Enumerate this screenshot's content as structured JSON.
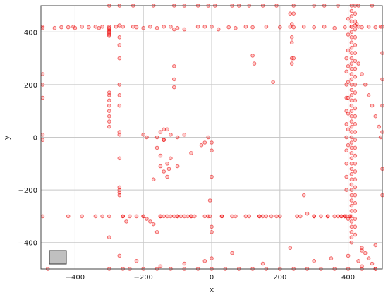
{
  "chart_data": {
    "type": "scatter",
    "title": "",
    "xlabel": "x",
    "ylabel": "y",
    "xlim": [
      -500,
      500
    ],
    "ylim": [
      -500,
      500
    ],
    "xticks": [
      -400,
      -200,
      0,
      200,
      400
    ],
    "yticks": [
      -400,
      -200,
      0,
      200,
      400
    ],
    "xtick_labels": [
      "−400",
      "−200",
      "0",
      "200",
      "400"
    ],
    "ytick_labels": [
      "−400",
      "−200",
      "0",
      "200",
      "400"
    ],
    "grid": true,
    "marker_color": "#ff0000",
    "inset_box_color": "#c0c0c0",
    "series": [
      {
        "x": [
          -495,
          -495,
          -460,
          -440,
          -420,
          -405,
          -400,
          -380,
          -360,
          -340,
          -330,
          -320,
          -300,
          -300,
          -300,
          -300,
          -300,
          -300,
          -300,
          -300,
          -280,
          -270,
          -260,
          -230,
          -220,
          -200,
          -180,
          -160,
          -140,
          -120,
          -110,
          -100,
          -80,
          -40,
          -20,
          0,
          20,
          50,
          70,
          100,
          120,
          160,
          200,
          230,
          240,
          270,
          300,
          330,
          360,
          390,
          410,
          420,
          425,
          430,
          440,
          460,
          480,
          495,
          -495,
          -495,
          -495,
          -495,
          -495,
          -495,
          -300,
          -300,
          -300,
          -300,
          -300,
          -300,
          -300,
          -300,
          -270,
          -270,
          -270,
          -270,
          -270,
          -270,
          -270,
          -270,
          -270,
          -270,
          -270,
          -270,
          -270,
          -260,
          -250,
          -200,
          -190,
          -180,
          -170,
          -160,
          -150,
          -140,
          -130,
          -120,
          -110,
          -100,
          -90,
          -80,
          -70,
          -60,
          -50,
          -10,
          -5,
          30,
          30,
          70,
          110,
          140,
          150,
          160,
          175,
          190,
          -110,
          -110,
          -110,
          -160,
          -150,
          -130,
          -120,
          -200,
          -190,
          -100,
          -140,
          -140,
          -80,
          0,
          0,
          0,
          0,
          -170,
          -150,
          -140,
          -130,
          -125,
          -150,
          -130,
          -160,
          -120,
          -140,
          -100,
          -60,
          -30,
          -20,
          -10,
          0,
          -5,
          120,
          125,
          180,
          230,
          235,
          235,
          235,
          235,
          235,
          240,
          240,
          250,
          270,
          280,
          300,
          320,
          340,
          360,
          380,
          390,
          395,
          400,
          405,
          410,
          410,
          410,
          410,
          410,
          410,
          410,
          410,
          410,
          410,
          410,
          410,
          410,
          410,
          410,
          410,
          410,
          410,
          410,
          410,
          410,
          410,
          410,
          410,
          410,
          410,
          410,
          410,
          410,
          410,
          410,
          410,
          410,
          410,
          410,
          410,
          410,
          410,
          410,
          410,
          410,
          410,
          410,
          410,
          410,
          410,
          420,
          420,
          420,
          420,
          420,
          420,
          420,
          420,
          420,
          420,
          420,
          420,
          420,
          420,
          420,
          420,
          420,
          420,
          420,
          420,
          420,
          420,
          420,
          420,
          420,
          420,
          420,
          420,
          420,
          420,
          395,
          395,
          395,
          395,
          395,
          395,
          395,
          395,
          395,
          395,
          395,
          400,
          400,
          400,
          400,
          400,
          400,
          400,
          400,
          400,
          430,
          440,
          450,
          460,
          470,
          480,
          490,
          495,
          500,
          500,
          500,
          500,
          500,
          500,
          500,
          440,
          450,
          460,
          470,
          480,
          430,
          440,
          -420,
          -380,
          -340,
          -320,
          -300,
          -260,
          -240,
          -220,
          -200,
          -150,
          -100,
          -60,
          -20,
          60,
          100,
          140,
          200,
          260,
          300,
          340,
          370,
          380,
          390,
          405,
          -300,
          -260,
          -240,
          -200,
          -160,
          -120,
          -80,
          -40,
          0,
          40,
          80,
          120,
          160,
          200,
          240,
          280,
          320,
          360,
          400,
          440,
          480,
          -300,
          -270,
          -230,
          -170,
          -110,
          -80,
          -40,
          -10,
          10,
          60,
          80,
          110,
          150,
          190,
          240,
          300,
          330,
          370,
          430,
          470,
          -480,
          -300,
          -270,
          -220,
          -150,
          -80,
          -20,
          0,
          60,
          150,
          230,
          300,
          350,
          400,
          440,
          480
        ],
        "y": [
          420,
          415,
          415,
          418,
          418,
          420,
          415,
          420,
          418,
          420,
          415,
          420,
          420,
          415,
          410,
          405,
          400,
          395,
          390,
          385,
          420,
          425,
          420,
          420,
          418,
          415,
          420,
          415,
          420,
          420,
          410,
          415,
          410,
          420,
          420,
          420,
          410,
          418,
          415,
          420,
          418,
          420,
          418,
          420,
          418,
          420,
          418,
          420,
          415,
          418,
          420,
          425,
          430,
          420,
          418,
          420,
          418,
          420,
          240,
          200,
          150,
          10,
          -10,
          -300,
          160,
          170,
          140,
          120,
          100,
          80,
          60,
          40,
          380,
          350,
          300,
          200,
          160,
          120,
          20,
          10,
          -80,
          -190,
          -200,
          -210,
          -220,
          -300,
          -320,
          -300,
          -310,
          -320,
          -330,
          -360,
          -300,
          -300,
          -300,
          -300,
          -300,
          -300,
          -300,
          -300,
          -300,
          -300,
          -300,
          -300,
          -300,
          -300,
          -300,
          -300,
          -300,
          -300,
          -300,
          -300,
          -300,
          -300,
          270,
          220,
          190,
          0,
          20,
          30,
          10,
          10,
          0,
          0,
          30,
          -10,
          10,
          -50,
          -150,
          -340,
          -360,
          -160,
          -110,
          -130,
          -150,
          -120,
          -70,
          -100,
          -40,
          -80,
          -10,
          -110,
          -60,
          -30,
          -20,
          0,
          -20,
          -240,
          310,
          280,
          210,
          470,
          430,
          380,
          360,
          300,
          280,
          470,
          300,
          -300,
          -220,
          -290,
          -300,
          -300,
          -300,
          -300,
          -300,
          -300,
          -300,
          -310,
          -300,
          500,
          480,
          460,
          440,
          420,
          400,
          380,
          360,
          340,
          320,
          300,
          280,
          260,
          240,
          220,
          200,
          180,
          160,
          140,
          120,
          100,
          80,
          60,
          40,
          20,
          0,
          -20,
          -40,
          -60,
          -80,
          -100,
          -120,
          -140,
          -160,
          -180,
          -200,
          -220,
          -240,
          -260,
          -280,
          -300,
          -320,
          -340,
          -360,
          -380,
          -400,
          500,
          470,
          440,
          410,
          380,
          350,
          320,
          290,
          260,
          230,
          200,
          170,
          140,
          110,
          80,
          50,
          20,
          -10,
          -40,
          -70,
          -100,
          -130,
          -160,
          -190,
          -220,
          -250,
          -280,
          -310,
          -340,
          -370,
          300,
          250,
          200,
          150,
          100,
          50,
          0,
          -50,
          -100,
          -150,
          -200,
          450,
          390,
          330,
          270,
          210,
          150,
          90,
          30,
          -30,
          280,
          240,
          200,
          160,
          120,
          80,
          40,
          0,
          420,
          320,
          220,
          120,
          20,
          -120,
          -220,
          -420,
          -440,
          -460,
          -480,
          -500,
          -470,
          -490,
          -300,
          -300,
          -300,
          -300,
          -300,
          -300,
          -300,
          -300,
          -300,
          -300,
          -300,
          -300,
          -300,
          -300,
          -300,
          -300,
          -300,
          -300,
          -300,
          -300,
          -300,
          -300,
          -300,
          -300,
          -500,
          -500,
          -500,
          -500,
          -500,
          -500,
          -500,
          -500,
          -500,
          -500,
          -500,
          -500,
          -500,
          -500,
          -500,
          -500,
          -500,
          -500,
          -500,
          -500,
          -500,
          500,
          500,
          500,
          500,
          500,
          500,
          500,
          500,
          500,
          500,
          500,
          500,
          500,
          500,
          500,
          500,
          500,
          500,
          500,
          500,
          -500,
          -380,
          -450,
          -470,
          -490,
          -480,
          -470,
          -460,
          -440,
          -480,
          -420,
          -470,
          -460,
          -450,
          -430,
          -410
        ]
      }
    ]
  }
}
